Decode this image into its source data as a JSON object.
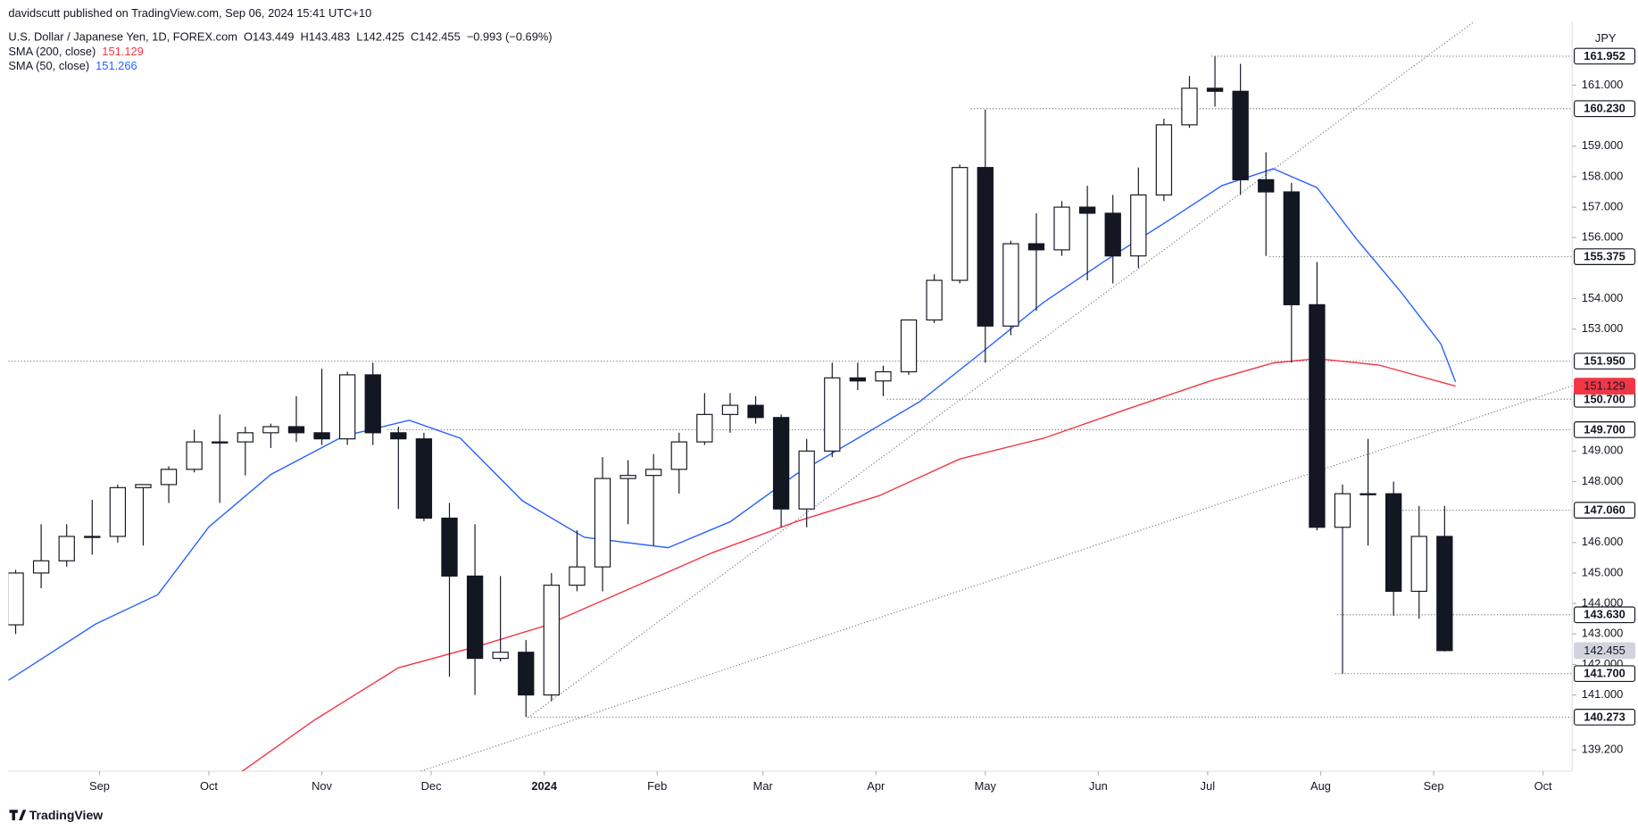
{
  "chart_data": {
    "type": "candlestick",
    "publisher": "davidscutt published on TradingView.com, Sep 06, 2024 15:41 UTC+10",
    "title": "U.S. Dollar / Japanese Yen, 1D, FOREX.com",
    "ohlc": [
      "O143.449",
      "H143.483",
      "L142.425",
      "C142.455",
      "−0.993 (−0.69%)"
    ],
    "currency": "JPY",
    "brand": "TradingView",
    "xlim": [
      -25,
      404
    ],
    "ylim": [
      138.5,
      163.1
    ],
    "xticks": [
      {
        "value": 0,
        "label": "Sep"
      },
      {
        "value": 30,
        "label": "Oct"
      },
      {
        "value": 61,
        "label": "Nov"
      },
      {
        "value": 91,
        "label": "Dec"
      },
      {
        "value": 122,
        "label": "2024"
      },
      {
        "value": 153,
        "label": "Feb"
      },
      {
        "value": 182,
        "label": "Mar"
      },
      {
        "value": 213,
        "label": "Apr"
      },
      {
        "value": 243,
        "label": "May"
      },
      {
        "value": 274,
        "label": "Jun"
      },
      {
        "value": 304,
        "label": "Jul"
      },
      {
        "value": 335,
        "label": "Aug"
      },
      {
        "value": 366,
        "label": "Sep"
      },
      {
        "value": 396,
        "label": "Oct"
      }
    ],
    "bold_xtick": "2024",
    "yticks": [
      {
        "value": 139.2,
        "label": "139.200"
      },
      {
        "value": 141,
        "label": "141.000"
      },
      {
        "value": 142,
        "label": "142.000"
      },
      {
        "value": 143,
        "label": "143.000"
      },
      {
        "value": 144,
        "label": "144.000"
      },
      {
        "value": 145,
        "label": "145.000"
      },
      {
        "value": 146,
        "label": "146.000"
      },
      {
        "value": 148,
        "label": "148.000"
      },
      {
        "value": 149,
        "label": "149.000"
      },
      {
        "value": 153,
        "label": "153.000"
      },
      {
        "value": 154,
        "label": "154.000"
      },
      {
        "value": 156,
        "label": "156.000"
      },
      {
        "value": 157,
        "label": "157.000"
      },
      {
        "value": 158,
        "label": "158.000"
      },
      {
        "value": 159,
        "label": "159.000"
      },
      {
        "value": 161,
        "label": "161.000"
      }
    ],
    "grid": false,
    "up_color": "#ffffff",
    "down_color": "#131722",
    "x": [
      -23,
      -16,
      -9,
      -2,
      5,
      12,
      19,
      26,
      33,
      40,
      47,
      54,
      61,
      68,
      75,
      82,
      89,
      96,
      103,
      110,
      117,
      124,
      131,
      138,
      145,
      152,
      159,
      166,
      173,
      180,
      187,
      194,
      201,
      208,
      215,
      222,
      229,
      236,
      243,
      250,
      257,
      264,
      271,
      278,
      285,
      292,
      299,
      306,
      313,
      320,
      327,
      334,
      341,
      348,
      355,
      362,
      369
    ],
    "open": [
      143.3,
      145.0,
      145.4,
      146.2,
      146.2,
      147.8,
      147.9,
      148.4,
      149.3,
      149.3,
      149.6,
      149.8,
      149.6,
      149.4,
      151.5,
      149.6,
      149.4,
      146.8,
      144.9,
      142.2,
      142.4,
      141.0,
      144.6,
      145.2,
      148.1,
      148.2,
      148.4,
      149.3,
      150.2,
      150.5,
      150.1,
      147.1,
      149.0,
      151.4,
      151.3,
      151.6,
      153.3,
      154.6,
      158.3,
      153.1,
      155.8,
      155.6,
      157.0,
      156.8,
      155.4,
      157.4,
      159.7,
      160.9,
      160.8,
      157.9,
      157.5,
      153.8,
      146.5,
      147.6,
      147.6,
      144.4,
      146.2
    ],
    "high": [
      145.1,
      146.6,
      146.6,
      147.4,
      147.9,
      147.9,
      148.5,
      149.7,
      150.2,
      149.8,
      149.9,
      150.8,
      151.7,
      151.6,
      151.9,
      149.8,
      149.6,
      147.3,
      146.6,
      144.9,
      142.8,
      145.0,
      146.4,
      148.8,
      148.7,
      148.9,
      149.6,
      150.9,
      150.9,
      150.8,
      150.2,
      149.4,
      151.9,
      151.9,
      151.8,
      153.3,
      154.8,
      158.4,
      160.2,
      155.9,
      156.8,
      157.2,
      157.7,
      157.4,
      158.3,
      159.9,
      161.3,
      161.952,
      161.7,
      158.8,
      157.8,
      155.2,
      147.9,
      149.4,
      148.0,
      147.2,
      147.2
    ],
    "low": [
      143.0,
      144.5,
      145.2,
      145.6,
      146.0,
      145.9,
      147.3,
      148.3,
      147.3,
      148.2,
      149.1,
      149.3,
      149.2,
      149.2,
      149.2,
      147.1,
      146.7,
      141.6,
      141.0,
      142.1,
      140.273,
      140.8,
      144.4,
      144.4,
      146.6,
      145.9,
      147.6,
      149.2,
      149.6,
      149.9,
      146.5,
      146.5,
      148.8,
      151.0,
      150.8,
      151.5,
      153.2,
      154.5,
      151.9,
      152.8,
      153.6,
      155.4,
      154.6,
      154.5,
      155.0,
      157.2,
      159.6,
      160.3,
      157.4,
      155.4,
      151.9,
      146.4,
      141.7,
      145.9,
      143.6,
      143.5,
      142.425
    ],
    "close": [
      145.0,
      145.4,
      146.2,
      146.2,
      147.8,
      147.9,
      148.4,
      149.3,
      149.3,
      149.6,
      149.8,
      149.6,
      149.4,
      151.5,
      149.6,
      149.4,
      146.8,
      144.9,
      142.2,
      142.4,
      141.0,
      144.6,
      145.2,
      148.1,
      148.2,
      148.4,
      149.3,
      150.2,
      150.5,
      150.1,
      147.1,
      149.0,
      151.4,
      151.3,
      151.6,
      153.3,
      154.6,
      158.3,
      153.1,
      155.8,
      155.6,
      157.0,
      156.8,
      155.4,
      157.4,
      159.7,
      160.9,
      160.8,
      157.9,
      157.5,
      153.8,
      146.5,
      147.6,
      147.6,
      144.4,
      146.2,
      142.455
    ],
    "last_label": "142.455",
    "series": [
      {
        "name": "SMA (200, close)",
        "color": "#f23645",
        "value_label": "151.129",
        "axis_label": true,
        "x": [
          38,
          59,
          82,
          105,
          122,
          145,
          168,
          191,
          214,
          236,
          259,
          282,
          305,
          322,
          334,
          351,
          372
        ],
        "values": [
          138.4,
          140.18,
          141.89,
          142.64,
          143.26,
          144.46,
          145.66,
          146.68,
          147.54,
          148.74,
          149.42,
          150.38,
          151.31,
          151.89,
          152.03,
          151.82,
          151.129
        ]
      },
      {
        "name": "SMA (50, close)",
        "color": "#2962ff",
        "value_label": "151.266",
        "axis_label": false,
        "x": [
          -25,
          -1,
          16,
          30,
          47,
          67,
          85,
          99,
          116,
          133,
          156,
          173,
          191,
          208,
          225,
          242,
          259,
          276,
          294,
          308,
          322,
          334,
          345,
          357,
          368,
          372
        ],
        "values": [
          141.48,
          143.33,
          144.29,
          146.51,
          148.23,
          149.49,
          150.01,
          149.42,
          147.37,
          146.17,
          145.83,
          146.68,
          148.23,
          149.42,
          150.62,
          152.23,
          153.88,
          155.25,
          156.62,
          157.71,
          158.26,
          157.64,
          155.93,
          154.22,
          152.51,
          151.266
        ]
      }
    ],
    "trendlines": [
      {
        "x": [
          117.5,
          376.8
        ],
        "y": [
          140.25,
          163.06
        ]
      },
      {
        "x": [
          87.4,
          404
        ],
        "y": [
          138.47,
          151.14
        ]
      }
    ],
    "levels": [
      {
        "value": 161.952,
        "label": "161.952",
        "from": 305
      },
      {
        "value": 160.23,
        "label": "160.230",
        "from": 239
      },
      {
        "value": 155.375,
        "label": "155.375",
        "from": 321
      },
      {
        "value": 151.95,
        "label": "151.950",
        "from": -25
      },
      {
        "value": 150.7,
        "label": "150.700",
        "from": 216
      },
      {
        "value": 149.7,
        "label": "149.700",
        "from": 79
      },
      {
        "value": 147.06,
        "label": "147.060",
        "from": 354
      },
      {
        "value": 143.63,
        "label": "143.630",
        "from": 339.5
      },
      {
        "value": 141.7,
        "label": "141.700",
        "from": 339
      },
      {
        "value": 140.273,
        "label": "140.273",
        "from": 117.5
      }
    ]
  }
}
